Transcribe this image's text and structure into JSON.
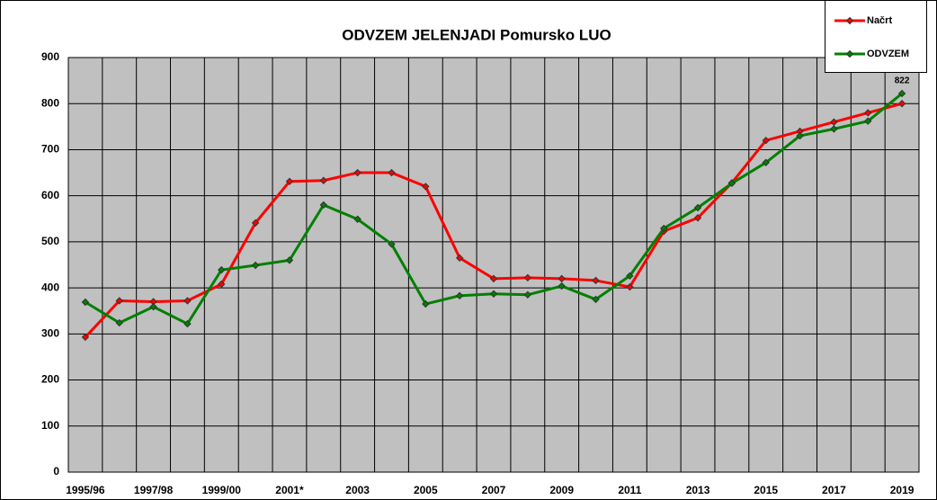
{
  "chart_data": {
    "type": "line",
    "title": "ODVZEM  JELENJADI  Pomursko LUO",
    "categories": [
      "1995/96",
      null,
      "1997/98",
      null,
      "1999/00",
      null,
      "2001*",
      null,
      "2003",
      null,
      "2005",
      null,
      "2007",
      null,
      "2009",
      null,
      "2011",
      null,
      "2013",
      null,
      "2015",
      null,
      "2017",
      null,
      "2019"
    ],
    "series": [
      {
        "name": "Načrt",
        "color": "#ff0000",
        "values": [
          293,
          372,
          370,
          372,
          408,
          541,
          631,
          633,
          650,
          650,
          620,
          465,
          420,
          422,
          420,
          416,
          402,
          523,
          552,
          628,
          720,
          740,
          760,
          780,
          800
        ]
      },
      {
        "name": "ODVZEM",
        "color": "#008000",
        "values": [
          369,
          324,
          359,
          322,
          439,
          449,
          460,
          580,
          549,
          495,
          365,
          383,
          387,
          385,
          404,
          375,
          426,
          529,
          574,
          627,
          672,
          730,
          745,
          762,
          822
        ],
        "value_labels": [
          null,
          null,
          null,
          null,
          null,
          null,
          null,
          null,
          null,
          null,
          null,
          null,
          null,
          null,
          null,
          null,
          null,
          null,
          null,
          null,
          null,
          null,
          null,
          null,
          "822"
        ]
      }
    ],
    "ylim": [
      0,
      900
    ],
    "yticks": [
      0,
      100,
      200,
      300,
      400,
      500,
      600,
      700,
      800,
      900
    ],
    "grid": true,
    "legend": "top-right"
  }
}
